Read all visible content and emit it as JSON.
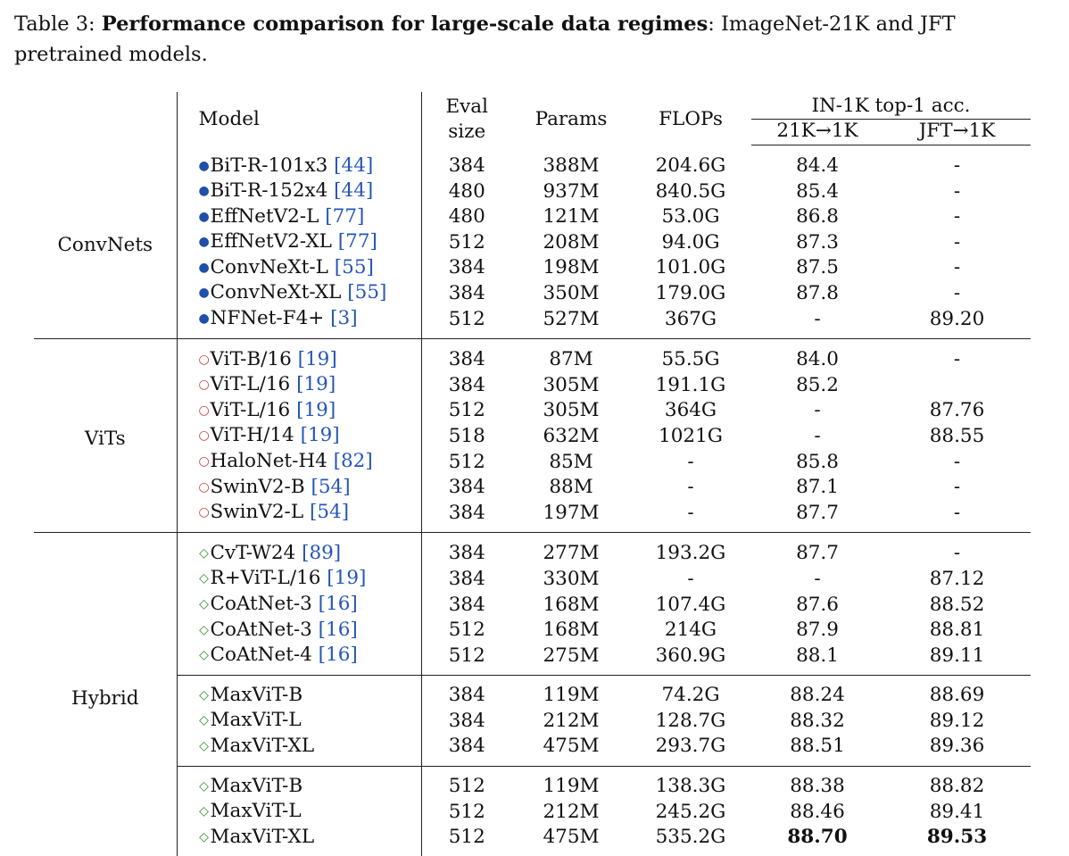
{
  "caption": {
    "label": "Table 3:",
    "title": "Performance comparison for large-scale data regimes",
    "rest": ": ImageNet-21K and JFT pretrained models."
  },
  "headers": {
    "model": "Model",
    "eval_line1": "Eval",
    "eval_line2": "size",
    "params": "Params",
    "flops": "FLOPs",
    "acc": "IN-1K top-1 acc.",
    "acc_21k": "21K→1K",
    "acc_jft": "JFT→1K"
  },
  "colors": {
    "convnet_marker": "#1f4fa8",
    "vit_marker": "#d23a3a",
    "hybrid_marker": "#2a8a2a",
    "citation": "#2556b8"
  },
  "groups": [
    {
      "name": "ConvNets",
      "marker": "●",
      "marker_icon": "filled-circle",
      "subgroups": [
        [
          {
            "model": "BiT-R-101x3",
            "ref": "[44]",
            "eval": "384",
            "params": "388M",
            "flops": "204.6G",
            "acc21k": "84.4",
            "accjft": "-"
          },
          {
            "model": "BiT-R-152x4",
            "ref": "[44]",
            "eval": "480",
            "params": "937M",
            "flops": "840.5G",
            "acc21k": "85.4",
            "accjft": "-"
          },
          {
            "model": "EffNetV2-L",
            "ref": "[77]",
            "eval": "480",
            "params": "121M",
            "flops": "53.0G",
            "acc21k": "86.8",
            "accjft": "-"
          },
          {
            "model": "EffNetV2-XL",
            "ref": "[77]",
            "eval": "512",
            "params": "208M",
            "flops": "94.0G",
            "acc21k": "87.3",
            "accjft": "-"
          },
          {
            "model": "ConvNeXt-L",
            "ref": "[55]",
            "eval": "384",
            "params": "198M",
            "flops": "101.0G",
            "acc21k": "87.5",
            "accjft": "-"
          },
          {
            "model": "ConvNeXt-XL",
            "ref": "[55]",
            "eval": "384",
            "params": "350M",
            "flops": "179.0G",
            "acc21k": "87.8",
            "accjft": "-"
          },
          {
            "model": "NFNet-F4+",
            "ref": "[3]",
            "eval": "512",
            "params": "527M",
            "flops": "367G",
            "acc21k": "-",
            "accjft": "89.20"
          }
        ]
      ]
    },
    {
      "name": "ViTs",
      "marker": "○",
      "marker_icon": "hollow-circle",
      "subgroups": [
        [
          {
            "model": "ViT-B/16",
            "ref": "[19]",
            "eval": "384",
            "params": "87M",
            "flops": "55.5G",
            "acc21k": "84.0",
            "accjft": "-"
          },
          {
            "model": "ViT-L/16",
            "ref": "[19]",
            "eval": "384",
            "params": "305M",
            "flops": "191.1G",
            "acc21k": "85.2",
            "accjft": ""
          },
          {
            "model": "ViT-L/16",
            "ref": "[19]",
            "eval": "512",
            "params": "305M",
            "flops": "364G",
            "acc21k": "-",
            "accjft": "87.76"
          },
          {
            "model": "ViT-H/14",
            "ref": "[19]",
            "eval": "518",
            "params": "632M",
            "flops": "1021G",
            "acc21k": "-",
            "accjft": "88.55"
          },
          {
            "model": "HaloNet-H4",
            "ref": "[82]",
            "eval": "512",
            "params": "85M",
            "flops": "-",
            "acc21k": "85.8",
            "accjft": "-"
          },
          {
            "model": "SwinV2-B",
            "ref": "[54]",
            "eval": "384",
            "params": "88M",
            "flops": "-",
            "acc21k": "87.1",
            "accjft": "-"
          },
          {
            "model": "SwinV2-L",
            "ref": "[54]",
            "eval": "384",
            "params": "197M",
            "flops": "-",
            "acc21k": "87.7",
            "accjft": "-"
          }
        ]
      ]
    },
    {
      "name": "Hybrid",
      "marker": "◇",
      "marker_icon": "hollow-diamond",
      "subgroups": [
        [
          {
            "model": "CvT-W24",
            "ref": "[89]",
            "eval": "384",
            "params": "277M",
            "flops": "193.2G",
            "acc21k": "87.7",
            "accjft": "-"
          },
          {
            "model": "R+ViT-L/16",
            "ref": "[19]",
            "eval": "384",
            "params": "330M",
            "flops": "-",
            "acc21k": "-",
            "accjft": "87.12"
          },
          {
            "model": "CoAtNet-3",
            "ref": "[16]",
            "eval": "384",
            "params": "168M",
            "flops": "107.4G",
            "acc21k": "87.6",
            "accjft": "88.52"
          },
          {
            "model": "CoAtNet-3",
            "ref": "[16]",
            "eval": "512",
            "params": "168M",
            "flops": "214G",
            "acc21k": "87.9",
            "accjft": "88.81"
          },
          {
            "model": "CoAtNet-4",
            "ref": "[16]",
            "eval": "512",
            "params": "275M",
            "flops": "360.9G",
            "acc21k": "88.1",
            "accjft": "89.11"
          }
        ],
        [
          {
            "model": "MaxViT-B",
            "ref": "",
            "eval": "384",
            "params": "119M",
            "flops": "74.2G",
            "acc21k": "88.24",
            "accjft": "88.69"
          },
          {
            "model": "MaxViT-L",
            "ref": "",
            "eval": "384",
            "params": "212M",
            "flops": "128.7G",
            "acc21k": "88.32",
            "accjft": "89.12"
          },
          {
            "model": "MaxViT-XL",
            "ref": "",
            "eval": "384",
            "params": "475M",
            "flops": "293.7G",
            "acc21k": "88.51",
            "accjft": "89.36"
          }
        ],
        [
          {
            "model": "MaxViT-B",
            "ref": "",
            "eval": "512",
            "params": "119M",
            "flops": "138.3G",
            "acc21k": "88.38",
            "accjft": "88.82"
          },
          {
            "model": "MaxViT-L",
            "ref": "",
            "eval": "512",
            "params": "212M",
            "flops": "245.2G",
            "acc21k": "88.46",
            "accjft": "89.41"
          },
          {
            "model": "MaxViT-XL",
            "ref": "",
            "eval": "512",
            "params": "475M",
            "flops": "535.2G",
            "acc21k": "88.70",
            "accjft": "89.53",
            "bold": true
          }
        ]
      ]
    }
  ]
}
